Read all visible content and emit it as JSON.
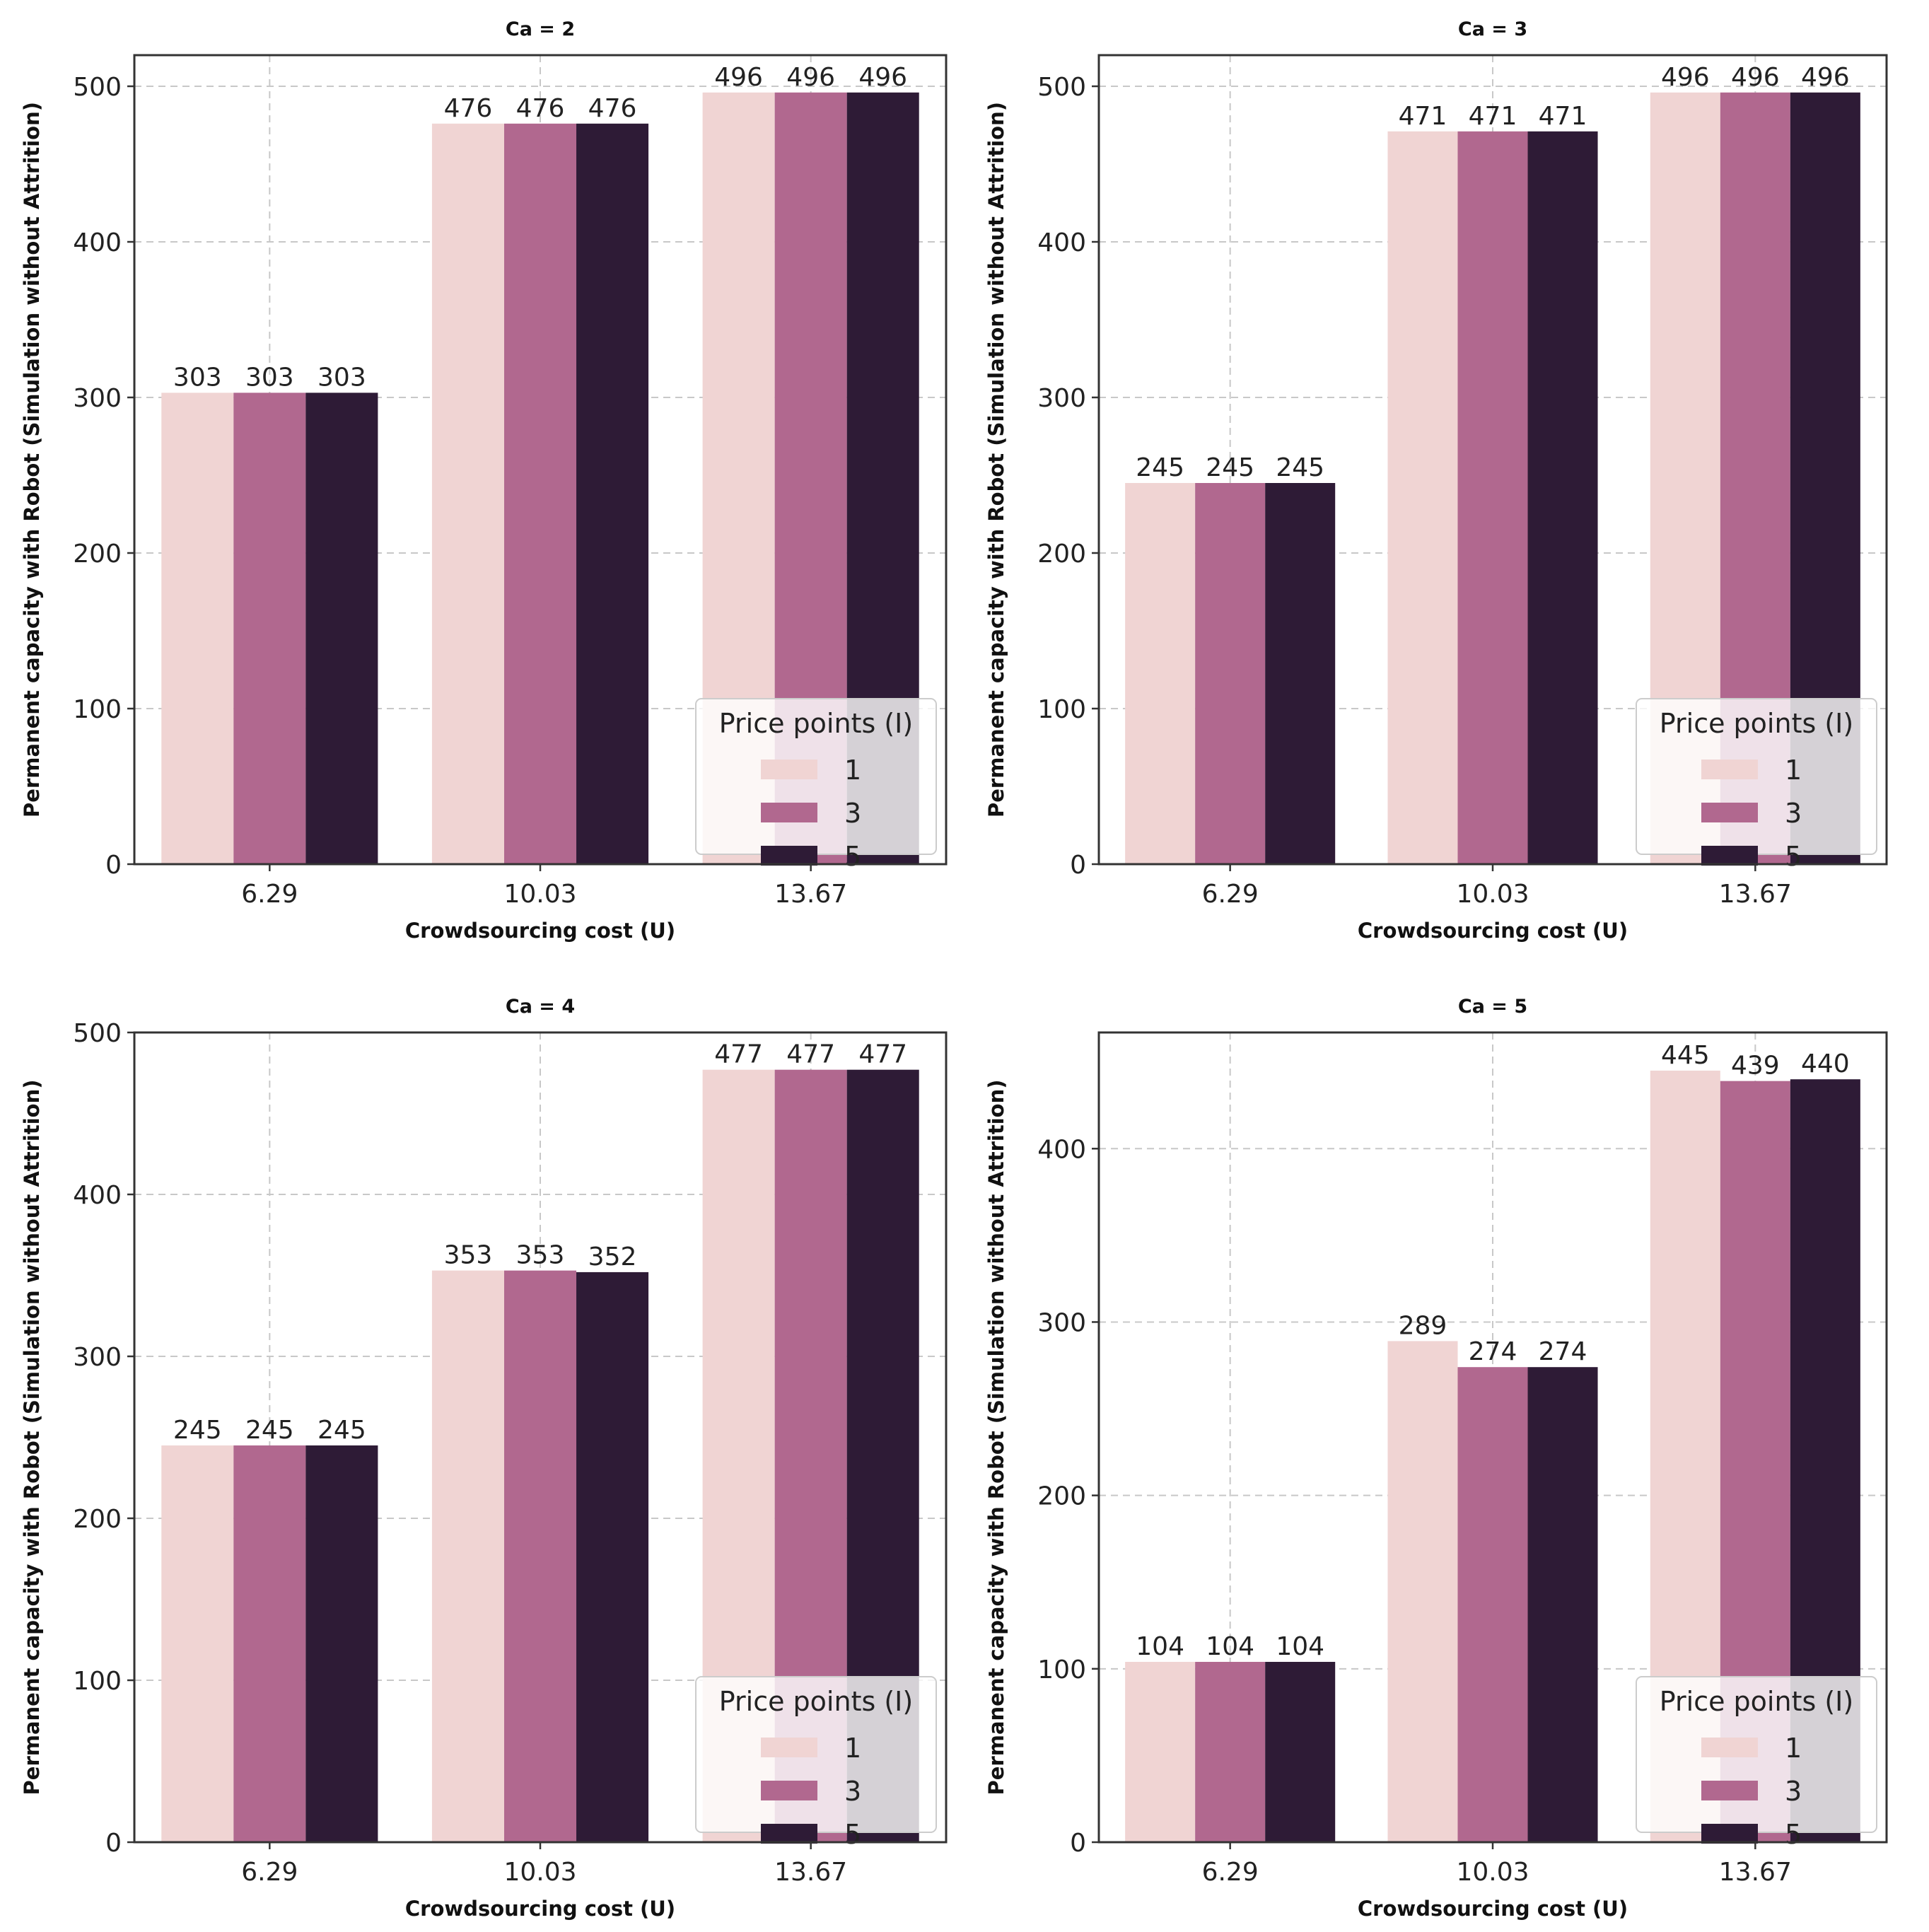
{
  "chart_data": [
    {
      "type": "bar",
      "title": "Ca = 2",
      "xlabel": "Crowdsourcing cost (U)",
      "ylabel": "Permanent capacity with Robot (Simulation without Attrition)",
      "categories": [
        "6.29",
        "10.03",
        "13.67"
      ],
      "ylim": [
        0,
        520
      ],
      "yticks": [
        0,
        100,
        200,
        300,
        400,
        500
      ],
      "legend_title": "Price points (I)",
      "legend_position": "lower-right",
      "series": [
        {
          "name": "1",
          "color": "#f0d4d3",
          "values": [
            303,
            476,
            496
          ]
        },
        {
          "name": "3",
          "color": "#b1688f",
          "values": [
            303,
            476,
            496
          ]
        },
        {
          "name": "5",
          "color": "#2e1b36",
          "values": [
            303,
            476,
            496
          ]
        }
      ]
    },
    {
      "type": "bar",
      "title": "Ca = 3",
      "xlabel": "Crowdsourcing cost (U)",
      "ylabel": "Permanent capacity with Robot (Simulation without Attrition)",
      "categories": [
        "6.29",
        "10.03",
        "13.67"
      ],
      "ylim": [
        0,
        520
      ],
      "yticks": [
        0,
        100,
        200,
        300,
        400,
        500
      ],
      "legend_title": "Price points (I)",
      "legend_position": "lower-right",
      "series": [
        {
          "name": "1",
          "color": "#f0d4d3",
          "values": [
            245,
            471,
            496
          ]
        },
        {
          "name": "3",
          "color": "#b1688f",
          "values": [
            245,
            471,
            496
          ]
        },
        {
          "name": "5",
          "color": "#2e1b36",
          "values": [
            245,
            471,
            496
          ]
        }
      ]
    },
    {
      "type": "bar",
      "title": "Ca = 4",
      "xlabel": "Crowdsourcing cost (U)",
      "ylabel": "Permanent capacity with Robot (Simulation without Attrition)",
      "categories": [
        "6.29",
        "10.03",
        "13.67"
      ],
      "ylim": [
        0,
        500
      ],
      "yticks": [
        0,
        100,
        200,
        300,
        400,
        500
      ],
      "legend_title": "Price points (I)",
      "legend_position": "lower-right",
      "series": [
        {
          "name": "1",
          "color": "#f0d4d3",
          "values": [
            245,
            353,
            477
          ]
        },
        {
          "name": "3",
          "color": "#b1688f",
          "values": [
            245,
            353,
            477
          ]
        },
        {
          "name": "5",
          "color": "#2e1b36",
          "values": [
            245,
            352,
            477
          ]
        }
      ]
    },
    {
      "type": "bar",
      "title": "Ca = 5",
      "xlabel": "Crowdsourcing cost (U)",
      "ylabel": "Permanent capacity with Robot (Simulation without Attrition)",
      "categories": [
        "6.29",
        "10.03",
        "13.67"
      ],
      "ylim": [
        0,
        467
      ],
      "yticks": [
        0,
        100,
        200,
        300,
        400
      ],
      "legend_title": "Price points (I)",
      "legend_position": "lower-right",
      "series": [
        {
          "name": "1",
          "color": "#f0d4d3",
          "values": [
            104,
            289,
            445
          ]
        },
        {
          "name": "3",
          "color": "#b1688f",
          "values": [
            104,
            274,
            439
          ]
        },
        {
          "name": "5",
          "color": "#2e1b36",
          "values": [
            104,
            274,
            440
          ]
        }
      ]
    }
  ]
}
